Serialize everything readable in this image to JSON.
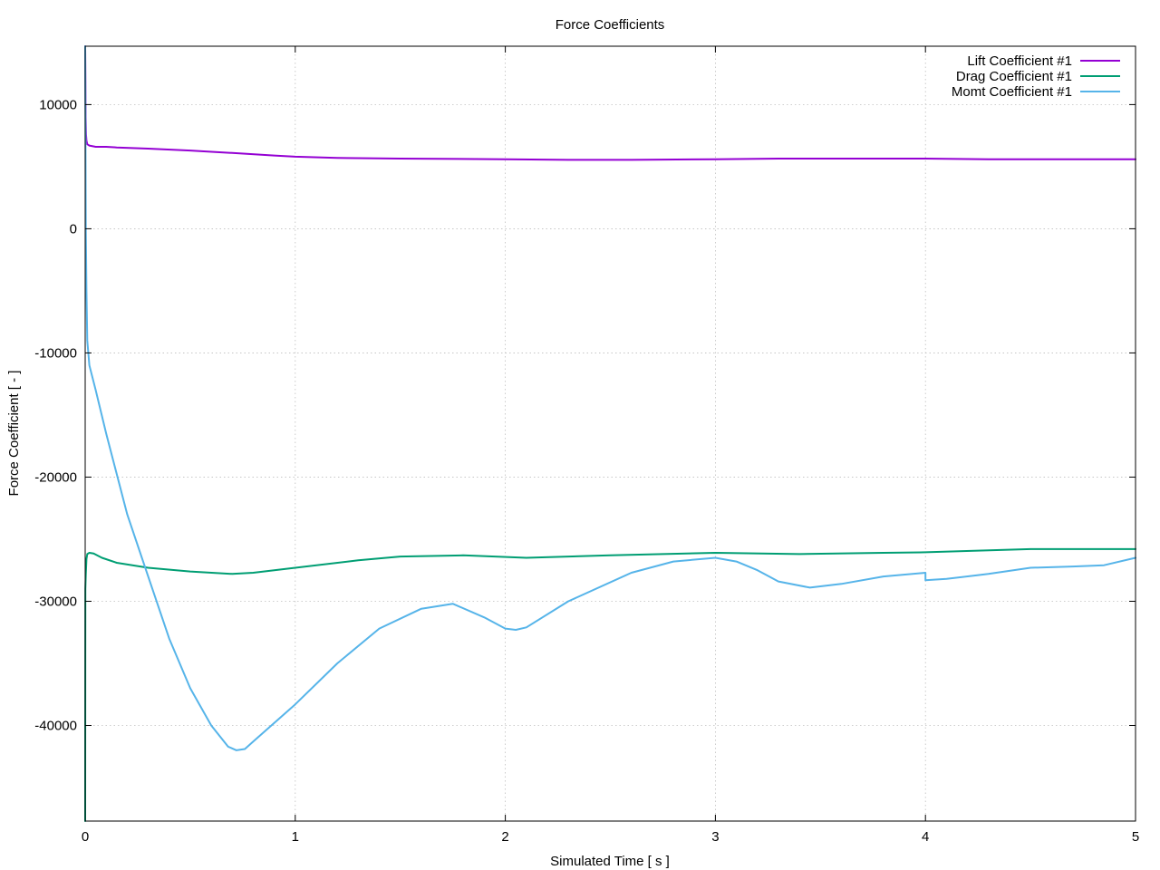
{
  "chart_data": {
    "type": "line",
    "title": "Force Coefficients",
    "xlabel": "Simulated Time [ s ]",
    "ylabel": "Force Coefficient [ - ]",
    "xlim": [
      0,
      5
    ],
    "ylim": [
      -47700,
      14700
    ],
    "xticks": [
      0,
      1,
      2,
      3,
      4,
      5
    ],
    "yticks": [
      -40000,
      -30000,
      -20000,
      -10000,
      0,
      10000
    ],
    "xtick_labels": [
      "0",
      "1",
      "2",
      "3",
      "4",
      "5"
    ],
    "ytick_labels": [
      "-40000",
      "-30000",
      "-20000",
      "-10000",
      "0",
      "10000"
    ],
    "grid": true,
    "legend_position": "top-right",
    "series": [
      {
        "name": "Lift Coefficient #1",
        "color": "#9400d3",
        "x": [
          0,
          0.002,
          0.004,
          0.006,
          0.01,
          0.02,
          0.05,
          0.1,
          0.15,
          0.3,
          0.5,
          0.7,
          0.9,
          1.0,
          1.2,
          1.5,
          2.0,
          2.3,
          2.6,
          3.0,
          3.3,
          3.6,
          4.0,
          4.3,
          4.6,
          5.0
        ],
        "y": [
          14700,
          9000,
          7600,
          7100,
          6800,
          6700,
          6600,
          6600,
          6550,
          6450,
          6300,
          6100,
          5900,
          5800,
          5700,
          5650,
          5600,
          5550,
          5550,
          5600,
          5650,
          5650,
          5650,
          5600,
          5600,
          5600
        ]
      },
      {
        "name": "Drag Coefficient #1",
        "color": "#009e73",
        "x": [
          0,
          0.001,
          0.003,
          0.006,
          0.01,
          0.02,
          0.04,
          0.08,
          0.15,
          0.3,
          0.5,
          0.7,
          0.8,
          1.0,
          1.3,
          1.5,
          1.8,
          2.1,
          2.5,
          3.0,
          3.4,
          3.8,
          4.0,
          4.5,
          5.0
        ],
        "y": [
          -47700,
          -29000,
          -27800,
          -26600,
          -26200,
          -26100,
          -26150,
          -26500,
          -26900,
          -27300,
          -27600,
          -27800,
          -27700,
          -27300,
          -26700,
          -26400,
          -26300,
          -26500,
          -26300,
          -26100,
          -26200,
          -26100,
          -26050,
          -25800,
          -25800
        ]
      },
      {
        "name": "Momt Coefficient #1",
        "color": "#56b4e9",
        "x": [
          0,
          0.003,
          0.006,
          0.01,
          0.02,
          0.05,
          0.1,
          0.2,
          0.3,
          0.4,
          0.5,
          0.6,
          0.68,
          0.72,
          0.76,
          0.8,
          0.9,
          1.0,
          1.2,
          1.4,
          1.6,
          1.75,
          1.9,
          2.0,
          2.05,
          2.1,
          2.3,
          2.6,
          2.8,
          3.0,
          3.1,
          3.2,
          3.3,
          3.45,
          3.6,
          3.8,
          4.0,
          4.0,
          4.1,
          4.3,
          4.5,
          4.7,
          4.85,
          5.0
        ],
        "y": [
          14700,
          0,
          -5000,
          -9000,
          -11000,
          -13000,
          -16500,
          -23000,
          -28000,
          -33000,
          -37000,
          -40000,
          -41700,
          -42000,
          -41900,
          -41300,
          -39800,
          -38300,
          -35000,
          -32200,
          -30600,
          -30200,
          -31300,
          -32200,
          -32300,
          -32100,
          -30000,
          -27700,
          -26800,
          -26500,
          -26800,
          -27500,
          -28400,
          -28900,
          -28600,
          -28000,
          -27700,
          -28300,
          -28200,
          -27800,
          -27300,
          -27200,
          -27100,
          -26500
        ]
      }
    ]
  }
}
